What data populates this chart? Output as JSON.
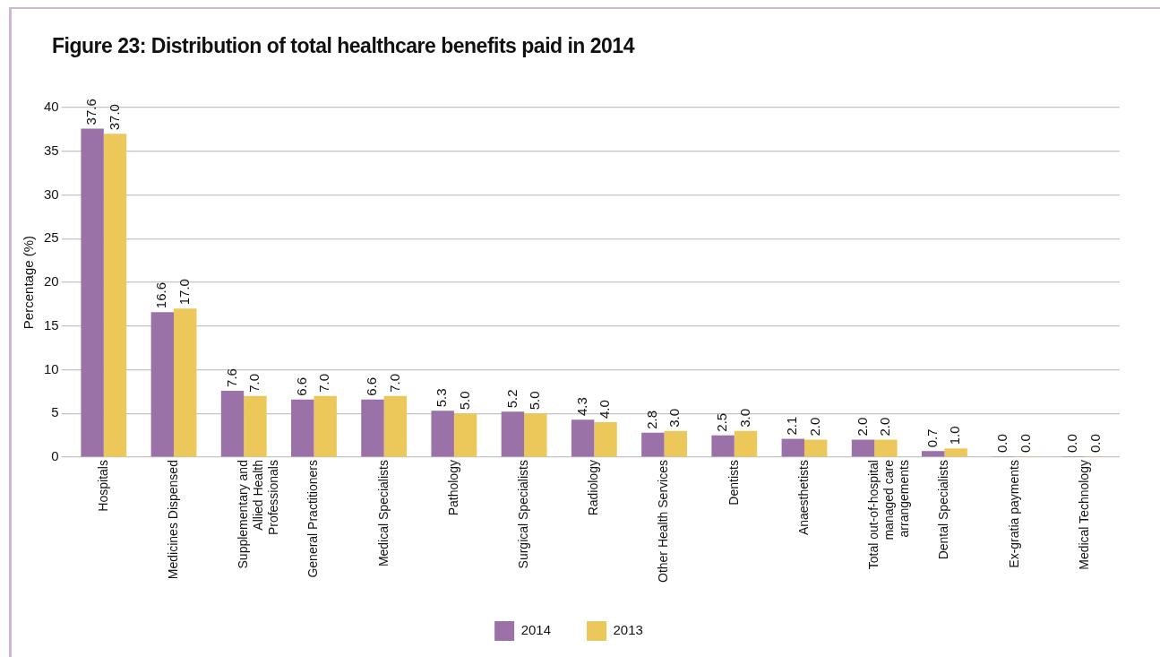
{
  "chart_data": {
    "type": "bar",
    "title": "Figure 23: Distribution of total healthcare benefits paid in 2014",
    "ylabel": "Percentage (%)",
    "categories": [
      "Hospitals",
      "Medicines Dispensed",
      "Supplementary and Allied Health Professionals",
      "General Practitioners",
      "Medical Specialists",
      "Pathology",
      "Surgical Specialists",
      "Radiology",
      "Other Health Services",
      "Dentists",
      "Anaesthetists",
      "Total out-of-hospital managed care arrangements",
      "Dental Specialists",
      "Ex-gratia payments",
      "Medical Technology"
    ],
    "series": [
      {
        "name": "2014",
        "color": "#9b72a8",
        "values": [
          37.6,
          16.6,
          7.6,
          6.6,
          6.6,
          5.3,
          5.2,
          4.3,
          2.8,
          2.5,
          2.1,
          2.0,
          0.7,
          0.0,
          0.0
        ],
        "value_labels": [
          "37.6",
          "16.6",
          "7.6",
          "6.6",
          "6.6",
          "5.3",
          "5.2",
          "4.3",
          "2.8",
          "2.5",
          "2.1",
          "2.0",
          "0.7",
          "0.0",
          "0.0"
        ]
      },
      {
        "name": "2013",
        "color": "#ecc75a",
        "values": [
          37.0,
          17.0,
          7.0,
          7.0,
          7.0,
          5.0,
          5.0,
          4.0,
          3.0,
          3.0,
          2.0,
          2.0,
          1.0,
          0.0,
          0.0
        ],
        "value_labels": [
          "37.0",
          "17.0",
          "7.0",
          "7.0",
          "7.0",
          "5.0",
          "5.0",
          "4.0",
          "3.0",
          "3.0",
          "2.0",
          "2.0",
          "1.0",
          "0.0",
          "0.0"
        ]
      }
    ],
    "ylim": [
      0,
      40
    ],
    "yticks": [
      0,
      5,
      10,
      15,
      20,
      25,
      30,
      35,
      40
    ],
    "grid": "y",
    "legend": "bottom"
  }
}
